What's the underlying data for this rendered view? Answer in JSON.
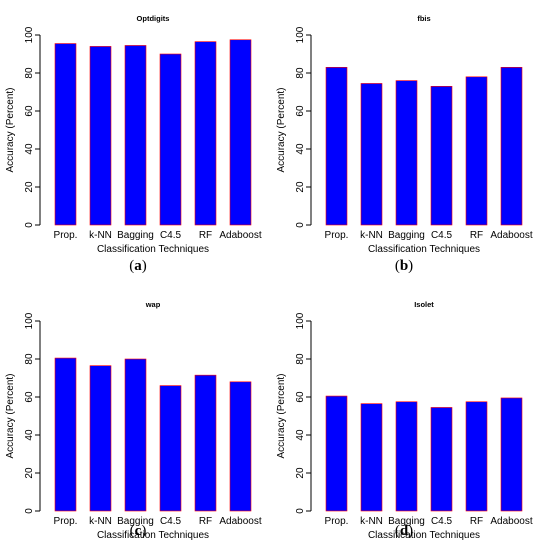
{
  "chart_data": [
    {
      "type": "bar",
      "title": "Optdigits",
      "xlabel": "Classification Techniques",
      "ylabel": "Accuracy (Percent)",
      "categories": [
        "Prop.",
        "k-NN",
        "Bagging",
        "C4.5",
        "RF",
        "Adaboost"
      ],
      "values": [
        95.5,
        94,
        94.5,
        90,
        96.5,
        97.5
      ],
      "ylim": [
        0,
        100
      ],
      "yticks": [
        0,
        20,
        40,
        60,
        80,
        100
      ],
      "caption": {
        "open": "(",
        "letter": "a",
        "close": ")"
      }
    },
    {
      "type": "bar",
      "title": "fbis",
      "xlabel": "Classification Techniques",
      "ylabel": "Accuracy (Percent)",
      "categories": [
        "Prop.",
        "k-NN",
        "Bagging",
        "C4.5",
        "RF",
        "Adaboost"
      ],
      "values": [
        83,
        74.5,
        76,
        73,
        78,
        83
      ],
      "ylim": [
        0,
        100
      ],
      "yticks": [
        0,
        20,
        40,
        60,
        80,
        100
      ],
      "caption": {
        "open": "(",
        "letter": "b",
        "close": ")"
      }
    },
    {
      "type": "bar",
      "title": "wap",
      "xlabel": "Classification Techniques",
      "ylabel": "Accuracy (Percent)",
      "categories": [
        "Prop.",
        "k-NN",
        "Bagging",
        "C4.5",
        "RF",
        "Adaboost"
      ],
      "values": [
        80.5,
        76.5,
        80,
        66,
        71.5,
        68
      ],
      "ylim": [
        0,
        100
      ],
      "yticks": [
        0,
        20,
        40,
        60,
        80,
        100
      ],
      "caption": {
        "open": "(",
        "letter": "c",
        "close": ")"
      }
    },
    {
      "type": "bar",
      "title": "Isolet",
      "xlabel": "Classification Techniques",
      "ylabel": "Accuracy (Percent)",
      "categories": [
        "Prop.",
        "k-NN",
        "Bagging",
        "C4.5",
        "RF",
        "Adaboost"
      ],
      "values": [
        60.5,
        56.5,
        57.5,
        54.5,
        57.5,
        59.5
      ],
      "ylim": [
        0,
        100
      ],
      "yticks": [
        0,
        20,
        40,
        60,
        80,
        100
      ],
      "caption": {
        "open": "(",
        "letter": "d",
        "close": ")"
      }
    }
  ],
  "colors": {
    "bar_fill": "#0000ff",
    "bar_edge": "#ff0000",
    "axis": "#000000"
  }
}
